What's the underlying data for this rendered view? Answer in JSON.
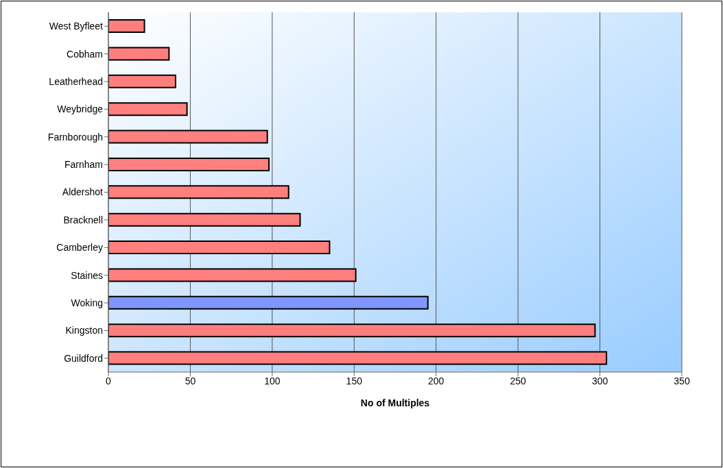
{
  "chart_data": {
    "type": "bar",
    "orientation": "horizontal",
    "xlabel": "No of Multiples",
    "categories": [
      "West Byfleet",
      "Cobham",
      "Leatherhead",
      "Weybridge",
      "Farnborough",
      "Farnham",
      "Aldershot",
      "Bracknell",
      "Camberley",
      "Staines",
      "Woking",
      "Kingston",
      "Guildford"
    ],
    "values": [
      22,
      37,
      41,
      48,
      97,
      98,
      110,
      117,
      135,
      151,
      195,
      297,
      304
    ],
    "colors": [
      "#ff7f7f",
      "#ff7f7f",
      "#ff7f7f",
      "#ff7f7f",
      "#ff7f7f",
      "#ff7f7f",
      "#ff7f7f",
      "#ff7f7f",
      "#ff7f7f",
      "#ff7f7f",
      "#7f95ff",
      "#ff7f7f",
      "#ff7f7f"
    ],
    "xlim": [
      0,
      350
    ],
    "xticks": [
      0,
      50,
      100,
      150,
      200,
      250,
      300,
      350
    ],
    "grid": "x",
    "legend": false
  }
}
